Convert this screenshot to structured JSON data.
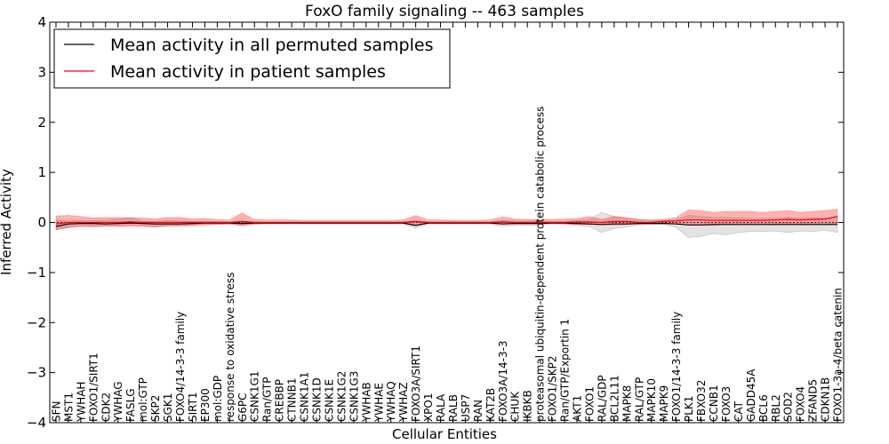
{
  "chart_data": {
    "type": "line",
    "title": "FoxO family signaling -- 463 samples",
    "xlabel": "Cellular Entities",
    "ylabel": "Inferred Activity",
    "ylim": [
      -4,
      4
    ],
    "yticks": [
      4,
      3,
      2,
      1,
      0,
      -1,
      -2,
      -3,
      -4
    ],
    "ytick_labels": [
      "4",
      "3",
      "2",
      "1",
      "0",
      "−1",
      "−2",
      "−3",
      "−4"
    ],
    "legend_position": "upper-left",
    "categories": [
      "SFN",
      "MST1",
      "YWHAH",
      "FOXO1/SIRT1",
      "CDK2",
      "YWHAG",
      "FASLG",
      "mol:GTP",
      "SKP2",
      "SGK1",
      "FOXO4/14-3-3 family",
      "SIRT1",
      "EP300",
      "mol:GDP",
      "response to oxidative stress",
      "G6PC",
      "CSNK1G1",
      "Ran/GTP",
      "CREBBP",
      "CTNNB1",
      "CSNK1A1",
      "CSNK1D",
      "CSNK1E",
      "CSNK1G2",
      "CSNK1G3",
      "YWHAB",
      "YWHAE",
      "YWHAQ",
      "YWHAZ",
      "FOXO3A/SIRT1",
      "XPO1",
      "RALA",
      "RALB",
      "USP7",
      "RAN",
      "KAT2B",
      "FOXO3A/14-3-3",
      "CHUK",
      "IKBKB",
      "proteasomal ubiquitin-dependent protein catabolic process",
      "FOXO1/SKP2",
      "Ran/GTP/Exportin 1",
      "AKT1",
      "FOXO1",
      "RAL/GDP",
      "BCL2L11",
      "MAPK8",
      "RAL/GTP",
      "MAPK10",
      "MAPK9",
      "FOXO1/14-3-3 family",
      "PLK1",
      "FBXO32",
      "CCNB1",
      "FOXO3",
      "CAT",
      "GADD45A",
      "BCL6",
      "RBL2",
      "SOD2",
      "FOXO4",
      "ZFAND5",
      "CDKN1B",
      "FOXO1-3a-4/beta catenin"
    ],
    "series": [
      {
        "name": "Mean activity in all permuted samples",
        "color": "#000000",
        "values": [
          -0.08,
          -0.03,
          -0.02,
          -0.02,
          -0.03,
          -0.02,
          -0.01,
          -0.02,
          -0.03,
          -0.03,
          -0.03,
          -0.02,
          -0.01,
          -0.01,
          -0.01,
          -0.02,
          -0.01,
          -0.01,
          -0.01,
          -0.01,
          -0.01,
          -0.01,
          -0.01,
          -0.01,
          -0.01,
          -0.01,
          -0.01,
          -0.01,
          -0.01,
          -0.06,
          -0.01,
          -0.01,
          -0.01,
          -0.01,
          -0.01,
          -0.01,
          -0.03,
          -0.02,
          -0.02,
          -0.02,
          -0.01,
          -0.01,
          -0.02,
          -0.03,
          -0.04,
          -0.03,
          -0.03,
          -0.02,
          -0.02,
          -0.02,
          -0.03,
          -0.05,
          -0.05,
          -0.04,
          -0.04,
          -0.04,
          -0.04,
          -0.04,
          -0.04,
          -0.04,
          -0.04,
          -0.04,
          -0.04,
          -0.04
        ],
        "band_low": [
          -0.14,
          -0.1,
          -0.08,
          -0.09,
          -0.08,
          -0.07,
          -0.06,
          -0.08,
          -0.09,
          -0.07,
          -0.07,
          -0.06,
          -0.04,
          -0.04,
          -0.03,
          -0.06,
          -0.04,
          -0.03,
          -0.03,
          -0.03,
          -0.03,
          -0.03,
          -0.03,
          -0.03,
          -0.03,
          -0.03,
          -0.03,
          -0.03,
          -0.03,
          -0.12,
          -0.03,
          -0.03,
          -0.03,
          -0.03,
          -0.03,
          -0.03,
          -0.08,
          -0.06,
          -0.05,
          -0.05,
          -0.03,
          -0.03,
          -0.06,
          -0.08,
          -0.2,
          -0.12,
          -0.09,
          -0.05,
          -0.04,
          -0.04,
          -0.1,
          -0.3,
          -0.28,
          -0.22,
          -0.25,
          -0.2,
          -0.18,
          -0.18,
          -0.17,
          -0.2,
          -0.17,
          -0.18,
          -0.16,
          -0.2
        ],
        "band_high": [
          0.05,
          0.03,
          0.04,
          0.04,
          0.04,
          0.06,
          0.1,
          0.03,
          0.02,
          0.04,
          0.03,
          0.02,
          0.02,
          0.02,
          0.01,
          0.03,
          0.01,
          0.01,
          0.01,
          0.01,
          0.01,
          0.01,
          0.01,
          0.01,
          0.01,
          0.01,
          0.01,
          0.01,
          0.01,
          0.03,
          0.01,
          0.01,
          0.01,
          0.01,
          0.01,
          0.01,
          0.04,
          0.03,
          0.03,
          0.03,
          0.02,
          0.02,
          0.04,
          0.06,
          0.2,
          0.12,
          0.08,
          0.05,
          0.04,
          0.04,
          0.05,
          0.14,
          0.12,
          0.1,
          0.1,
          0.09,
          0.08,
          0.08,
          0.08,
          0.1,
          0.08,
          0.09,
          0.08,
          0.1
        ]
      },
      {
        "name": "Mean activity in patient samples",
        "color": "#ff0000",
        "values": [
          -0.03,
          0.0,
          0.0,
          0.0,
          0.0,
          0.0,
          0.01,
          0.0,
          0.0,
          0.0,
          0.0,
          0.0,
          0.0,
          0.0,
          0.0,
          0.02,
          0.0,
          0.0,
          0.0,
          0.0,
          0.0,
          0.0,
          0.0,
          0.0,
          0.0,
          0.0,
          0.0,
          0.0,
          0.0,
          0.02,
          0.0,
          0.0,
          0.0,
          0.0,
          0.0,
          0.0,
          0.01,
          0.0,
          0.0,
          0.0,
          0.0,
          0.0,
          0.01,
          0.01,
          0.0,
          0.02,
          0.02,
          0.0,
          0.0,
          0.02,
          0.03,
          0.05,
          0.05,
          0.04,
          0.04,
          0.04,
          0.04,
          0.04,
          0.05,
          0.06,
          0.05,
          0.06,
          0.07,
          0.12
        ],
        "band_low": [
          -0.15,
          -0.1,
          -0.08,
          -0.08,
          -0.07,
          -0.08,
          -0.07,
          -0.07,
          -0.09,
          -0.07,
          -0.07,
          -0.06,
          -0.05,
          -0.04,
          -0.03,
          -0.06,
          -0.03,
          -0.02,
          -0.02,
          -0.02,
          -0.02,
          -0.02,
          -0.02,
          -0.02,
          -0.02,
          -0.02,
          -0.02,
          -0.02,
          -0.02,
          -0.06,
          -0.02,
          -0.02,
          -0.02,
          -0.02,
          -0.02,
          -0.02,
          -0.03,
          -0.03,
          -0.03,
          -0.03,
          -0.02,
          -0.03,
          -0.04,
          -0.04,
          -0.04,
          -0.05,
          -0.04,
          -0.03,
          -0.02,
          -0.02,
          -0.03,
          -0.05,
          -0.05,
          -0.06,
          -0.04,
          -0.04,
          -0.04,
          -0.04,
          -0.03,
          -0.03,
          -0.03,
          -0.03,
          -0.04,
          -0.02
        ],
        "band_high": [
          0.13,
          0.14,
          0.12,
          0.09,
          0.1,
          0.1,
          0.09,
          0.09,
          0.07,
          0.1,
          0.1,
          0.07,
          0.08,
          0.06,
          0.05,
          0.19,
          0.06,
          0.05,
          0.05,
          0.05,
          0.04,
          0.04,
          0.04,
          0.04,
          0.04,
          0.04,
          0.04,
          0.04,
          0.05,
          0.14,
          0.05,
          0.05,
          0.04,
          0.04,
          0.04,
          0.05,
          0.11,
          0.07,
          0.06,
          0.06,
          0.06,
          0.07,
          0.08,
          0.12,
          0.06,
          0.12,
          0.1,
          0.06,
          0.05,
          0.06,
          0.1,
          0.25,
          0.24,
          0.2,
          0.22,
          0.22,
          0.22,
          0.2,
          0.22,
          0.24,
          0.2,
          0.22,
          0.24,
          0.26
        ]
      }
    ]
  }
}
